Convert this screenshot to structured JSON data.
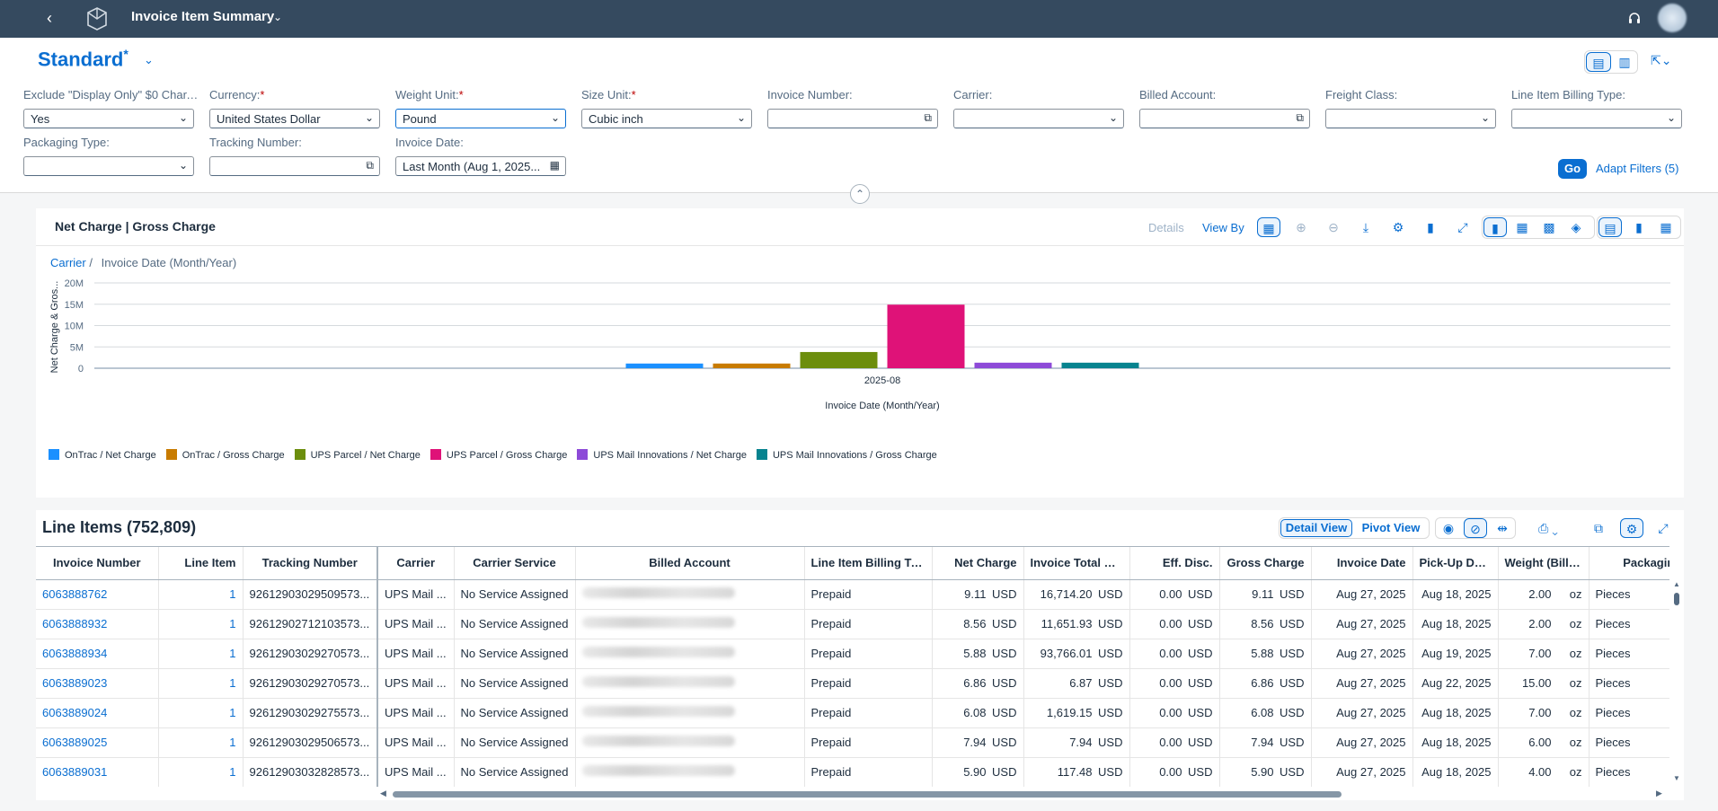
{
  "shell": {
    "title": "Invoice Item Summary"
  },
  "variant": {
    "name": "Standard",
    "modified": "*"
  },
  "filters": [
    {
      "label": "Exclude \"Display Only\" $0 Char...",
      "required": true,
      "value": "Yes",
      "type": "select"
    },
    {
      "label": "Currency:",
      "required": true,
      "value": "United States Dollar",
      "type": "select"
    },
    {
      "label": "Weight Unit:",
      "required": true,
      "value": "Pound",
      "type": "select"
    },
    {
      "label": "Size Unit:",
      "required": true,
      "value": "Cubic inch",
      "type": "select"
    },
    {
      "label": "Invoice Number:",
      "required": false,
      "value": "",
      "type": "valuehelp"
    },
    {
      "label": "Carrier:",
      "required": false,
      "value": "",
      "type": "select"
    },
    {
      "label": "Billed Account:",
      "required": false,
      "value": "",
      "type": "valuehelp"
    },
    {
      "label": "Freight Class:",
      "required": false,
      "value": "",
      "type": "select"
    },
    {
      "label": "Line Item Billing Type:",
      "required": false,
      "value": "",
      "type": "select"
    },
    {
      "label": "Packaging Type:",
      "required": false,
      "value": "",
      "type": "select"
    },
    {
      "label": "Tracking Number:",
      "required": false,
      "value": "",
      "type": "valuehelp"
    },
    {
      "label": "Invoice Date:",
      "required": false,
      "value": "Last Month (Aug 1, 2025...",
      "type": "date"
    }
  ],
  "actions": {
    "go": "Go",
    "adapt": "Adapt Filters (5)"
  },
  "chart_card": {
    "title": "Net Charge | Gross Charge",
    "details": "Details",
    "view_by": "View By",
    "breadcrumb_link": "Carrier",
    "breadcrumb_sep": "/",
    "breadcrumb_current": "Invoice Date (Month/Year)"
  },
  "chart_data": {
    "type": "bar",
    "categories": [
      "2025-08"
    ],
    "xlabel": "Invoice Date (Month/Year)",
    "ylabel": "Net Charge & Gros...",
    "ylim": [
      0,
      20000000
    ],
    "yticks": [
      "20M",
      "15M",
      "10M",
      "5M",
      "0"
    ],
    "yticks_values": [
      20000000,
      15000000,
      10000000,
      5000000,
      0
    ],
    "grid": true,
    "legend_position": "bottom-left",
    "series": [
      {
        "name": "OnTrac / Net Charge",
        "color": "#1b90ff",
        "values": [
          1100000
        ]
      },
      {
        "name": "OnTrac / Gross Charge",
        "color": "#c87b00",
        "values": [
          1100000
        ]
      },
      {
        "name": "UPS Parcel / Net Charge",
        "color": "#6c8e0d",
        "values": [
          3800000
        ]
      },
      {
        "name": "UPS Parcel / Gross Charge",
        "color": "#df1278",
        "values": [
          14900000
        ]
      },
      {
        "name": "UPS Mail Innovations / Net Charge",
        "color": "#8d4ad8",
        "values": [
          1300000
        ]
      },
      {
        "name": "UPS Mail Innovations / Gross Charge",
        "color": "#07838f",
        "values": [
          1300000
        ]
      }
    ]
  },
  "table": {
    "title": "Line Items (752,809)",
    "detail_view": "Detail View",
    "pivot_view": "Pivot View",
    "columns": [
      "Invoice Number",
      "Line Item",
      "Tracking Number",
      "Carrier",
      "Carrier Service",
      "Billed Account",
      "Line Item Billing Type",
      "Net Charge",
      "Invoice Total Charge",
      "Eff. Disc.",
      "Gross Charge",
      "Invoice Date",
      "Pick-Up Date",
      "Weight (Billed)",
      "Packaging T"
    ],
    "rows": [
      {
        "inv": "6063888762",
        "line": "1",
        "track": "92612903029509573...",
        "carrier": "UPS Mail ...",
        "service": "No Service Assigned",
        "billing": "Prepaid",
        "net": "9.11",
        "net_cur": "USD",
        "total": "16,714.20",
        "total_cur": "USD",
        "disc": "0.00",
        "disc_cur": "USD",
        "gross": "9.11",
        "gross_cur": "USD",
        "inv_date": "Aug 27, 2025",
        "pickup": "Aug 18, 2025",
        "weight": "2.00",
        "wunit": "oz",
        "pack": "Pieces"
      },
      {
        "inv": "6063888932",
        "line": "1",
        "track": "92612902712103573...",
        "carrier": "UPS Mail ...",
        "service": "No Service Assigned",
        "billing": "Prepaid",
        "net": "8.56",
        "net_cur": "USD",
        "total": "11,651.93",
        "total_cur": "USD",
        "disc": "0.00",
        "disc_cur": "USD",
        "gross": "8.56",
        "gross_cur": "USD",
        "inv_date": "Aug 27, 2025",
        "pickup": "Aug 18, 2025",
        "weight": "2.00",
        "wunit": "oz",
        "pack": "Pieces"
      },
      {
        "inv": "6063888934",
        "line": "1",
        "track": "92612903029270573...",
        "carrier": "UPS Mail ...",
        "service": "No Service Assigned",
        "billing": "Prepaid",
        "net": "5.88",
        "net_cur": "USD",
        "total": "93,766.01",
        "total_cur": "USD",
        "disc": "0.00",
        "disc_cur": "USD",
        "gross": "5.88",
        "gross_cur": "USD",
        "inv_date": "Aug 27, 2025",
        "pickup": "Aug 19, 2025",
        "weight": "7.00",
        "wunit": "oz",
        "pack": "Pieces"
      },
      {
        "inv": "6063889023",
        "line": "1",
        "track": "92612903029270573...",
        "carrier": "UPS Mail ...",
        "service": "No Service Assigned",
        "billing": "Prepaid",
        "net": "6.86",
        "net_cur": "USD",
        "total": "6.87",
        "total_cur": "USD",
        "disc": "0.00",
        "disc_cur": "USD",
        "gross": "6.86",
        "gross_cur": "USD",
        "inv_date": "Aug 27, 2025",
        "pickup": "Aug 22, 2025",
        "weight": "15.00",
        "wunit": "oz",
        "pack": "Pieces"
      },
      {
        "inv": "6063889024",
        "line": "1",
        "track": "92612903029275573...",
        "carrier": "UPS Mail ...",
        "service": "No Service Assigned",
        "billing": "Prepaid",
        "net": "6.08",
        "net_cur": "USD",
        "total": "1,619.15",
        "total_cur": "USD",
        "disc": "0.00",
        "disc_cur": "USD",
        "gross": "6.08",
        "gross_cur": "USD",
        "inv_date": "Aug 27, 2025",
        "pickup": "Aug 18, 2025",
        "weight": "7.00",
        "wunit": "oz",
        "pack": "Pieces"
      },
      {
        "inv": "6063889025",
        "line": "1",
        "track": "92612903029506573...",
        "carrier": "UPS Mail ...",
        "service": "No Service Assigned",
        "billing": "Prepaid",
        "net": "7.94",
        "net_cur": "USD",
        "total": "7.94",
        "total_cur": "USD",
        "disc": "0.00",
        "disc_cur": "USD",
        "gross": "7.94",
        "gross_cur": "USD",
        "inv_date": "Aug 27, 2025",
        "pickup": "Aug 18, 2025",
        "weight": "6.00",
        "wunit": "oz",
        "pack": "Pieces"
      },
      {
        "inv": "6063889031",
        "line": "1",
        "track": "92612903032828573...",
        "carrier": "UPS Mail ...",
        "service": "No Service Assigned",
        "billing": "Prepaid",
        "net": "5.90",
        "net_cur": "USD",
        "total": "117.48",
        "total_cur": "USD",
        "disc": "0.00",
        "disc_cur": "USD",
        "gross": "5.90",
        "gross_cur": "USD",
        "inv_date": "Aug 27, 2025",
        "pickup": "Aug 18, 2025",
        "weight": "4.00",
        "wunit": "oz",
        "pack": "Pieces"
      }
    ]
  }
}
